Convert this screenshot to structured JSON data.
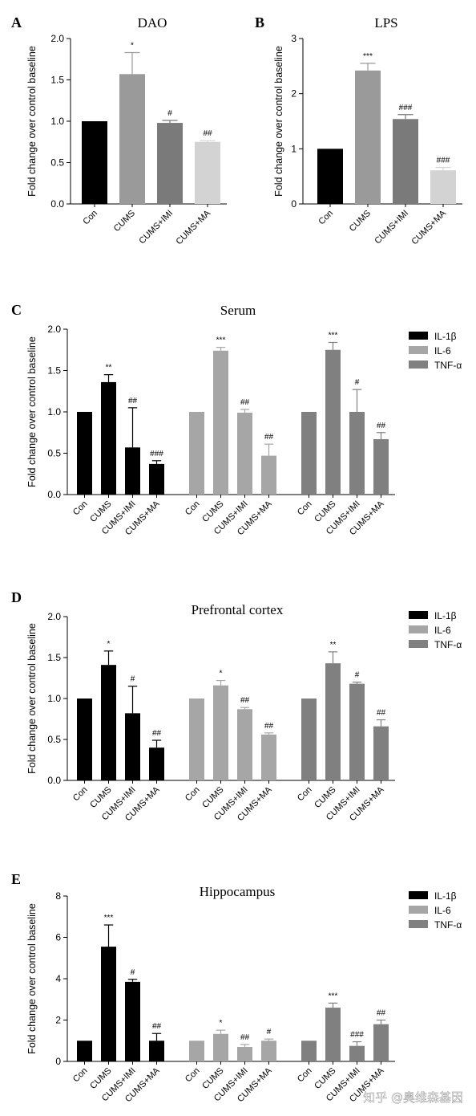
{
  "colors": {
    "black": "#000000",
    "gray_dark": "#7a7a7a",
    "gray_mid": "#9a9a9a",
    "gray_light": "#d3d3d3",
    "il6": "#a6a6a6",
    "tnf": "#808080"
  },
  "watermark": "知乎 @奥维森基因",
  "chart_data": [
    {
      "panel": "A",
      "type": "bar",
      "title": "DAO",
      "ylabel": "Fold change over control baseline",
      "ylim": [
        0,
        2.0
      ],
      "yticks": [
        "0.0",
        "0.5",
        "1.0",
        "1.5",
        "2.0"
      ],
      "categories": [
        "Con",
        "CUMS",
        "CUMS+IMI",
        "CUMS+MA"
      ],
      "series": [
        {
          "values": [
            1.0,
            1.57,
            0.98,
            0.75
          ],
          "errors": [
            0,
            0.26,
            0.03,
            0.015
          ],
          "sig": [
            "",
            "*",
            "#",
            "##"
          ],
          "colors": [
            "#000000",
            "#9a9a9a",
            "#7a7a7a",
            "#d3d3d3"
          ]
        }
      ]
    },
    {
      "panel": "B",
      "type": "bar",
      "title": "LPS",
      "ylabel": "Fold change over control baseline",
      "ylim": [
        0,
        3
      ],
      "yticks": [
        "0",
        "1",
        "2",
        "3"
      ],
      "categories": [
        "Con",
        "CUMS",
        "CUMS+IMI",
        "CUMS+MA"
      ],
      "series": [
        {
          "values": [
            1.0,
            2.42,
            1.54,
            0.61
          ],
          "errors": [
            0,
            0.13,
            0.08,
            0.05
          ],
          "sig": [
            "",
            "***",
            "###",
            "###"
          ],
          "colors": [
            "#000000",
            "#9a9a9a",
            "#7a7a7a",
            "#d3d3d3"
          ]
        }
      ]
    },
    {
      "panel": "C",
      "type": "bar",
      "title": "Serum",
      "ylabel": "Fold change over control baseline",
      "ylim": [
        0,
        2.0
      ],
      "yticks": [
        "0.0",
        "0.5",
        "1.0",
        "1.5",
        "2.0"
      ],
      "categories": [
        "Con",
        "CUMS",
        "CUMS+IMI",
        "CUMS+MA"
      ],
      "legend": [
        "IL-1β",
        "IL-6",
        "TNF-α"
      ],
      "series": [
        {
          "name": "IL-1β",
          "values": [
            1.0,
            1.36,
            0.57,
            0.37
          ],
          "errors": [
            0,
            0.09,
            0.48,
            0.04
          ],
          "sig": [
            "",
            "**",
            "##",
            "###"
          ]
        },
        {
          "name": "IL-6",
          "values": [
            1.0,
            1.74,
            0.99,
            0.47
          ],
          "errors": [
            0,
            0.04,
            0.04,
            0.14
          ],
          "sig": [
            "",
            "***",
            "##",
            "##"
          ]
        },
        {
          "name": "TNF-α",
          "values": [
            1.0,
            1.75,
            1.0,
            0.67
          ],
          "errors": [
            0,
            0.09,
            0.27,
            0.08
          ],
          "sig": [
            "",
            "***",
            "#",
            "##"
          ]
        }
      ]
    },
    {
      "panel": "D",
      "type": "bar",
      "title": "Prefrontal cortex",
      "ylabel": "Fold change over control baseline",
      "ylim": [
        0,
        2.0
      ],
      "yticks": [
        "0.0",
        "0.5",
        "1.0",
        "1.5",
        "2.0"
      ],
      "categories": [
        "Con",
        "CUMS",
        "CUMS+IMI",
        "CUMS+MA"
      ],
      "legend": [
        "IL-1β",
        "IL-6",
        "TNF-α"
      ],
      "series": [
        {
          "name": "IL-1β",
          "values": [
            1.0,
            1.41,
            0.82,
            0.4
          ],
          "errors": [
            0,
            0.17,
            0.33,
            0.09
          ],
          "sig": [
            "",
            "*",
            "#",
            "##"
          ]
        },
        {
          "name": "IL-6",
          "values": [
            1.0,
            1.16,
            0.87,
            0.56
          ],
          "errors": [
            0,
            0.06,
            0.02,
            0.02
          ],
          "sig": [
            "",
            "*",
            "##",
            "##"
          ]
        },
        {
          "name": "TNF-α",
          "values": [
            1.0,
            1.43,
            1.18,
            0.66
          ],
          "errors": [
            0,
            0.14,
            0.02,
            0.08
          ],
          "sig": [
            "",
            "**",
            "#",
            "##"
          ]
        }
      ]
    },
    {
      "panel": "E",
      "type": "bar",
      "title": "Hippocampus",
      "ylabel": "Fold change over control baseline",
      "ylim": [
        0,
        8
      ],
      "yticks": [
        "0",
        "2",
        "4",
        "6",
        "8"
      ],
      "categories": [
        "Con",
        "CUMS",
        "CUMS+IMI",
        "CUMS+MA"
      ],
      "legend": [
        "IL-1β",
        "IL-6",
        "TNF-α"
      ],
      "series": [
        {
          "name": "IL-1β",
          "values": [
            1.0,
            5.55,
            3.85,
            1.0
          ],
          "errors": [
            0,
            1.05,
            0.12,
            0.35
          ],
          "sig": [
            "",
            "***",
            "#",
            "##"
          ]
        },
        {
          "name": "IL-6",
          "values": [
            1.0,
            1.33,
            0.7,
            1.0
          ],
          "errors": [
            0,
            0.18,
            0.12,
            0.08
          ],
          "sig": [
            "",
            "*",
            "##",
            "#"
          ]
        },
        {
          "name": "TNF-α",
          "values": [
            1.0,
            2.6,
            0.75,
            1.8
          ],
          "errors": [
            0,
            0.22,
            0.2,
            0.2
          ],
          "sig": [
            "",
            "***",
            "###",
            "##"
          ]
        }
      ]
    }
  ]
}
